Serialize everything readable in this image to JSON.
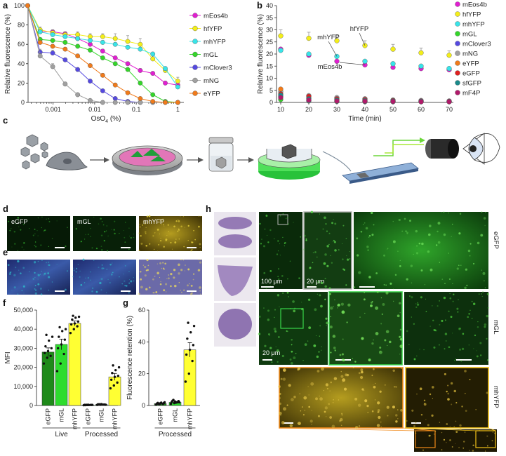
{
  "panel_letters": {
    "a": "a",
    "b": "b",
    "c": "c",
    "d": "d",
    "e": "e",
    "f": "f",
    "g": "g",
    "h": "h"
  },
  "chart_data": [
    {
      "id": "a",
      "type": "line",
      "xscale": "log",
      "xlabel_main": "OsO",
      "xlabel_sub": "4",
      "xlabel_tail": " (%)",
      "ylabel": "Relative fluorescence (%)",
      "xlim": [
        0.00025,
        1.4
      ],
      "ylim": [
        0,
        100
      ],
      "xticks": [
        0.001,
        0.01,
        0.1,
        1
      ],
      "xtick_labels": [
        "0.001",
        "0.01",
        "0.1",
        "1"
      ],
      "yticks": [
        0,
        20,
        40,
        60,
        80,
        100
      ],
      "legend_position": "right",
      "series": [
        {
          "name": "mEos4b",
          "color": "#e01fd0",
          "x": [
            0.0002441,
            0.000488,
            0.000977,
            0.00195,
            0.0039,
            0.0078,
            0.0156,
            0.03125,
            0.0625,
            0.125,
            0.25,
            0.5,
            1
          ],
          "y": [
            100,
            73,
            73,
            71,
            66,
            60,
            53,
            46,
            40,
            33,
            30,
            20,
            18
          ],
          "err": [
            0,
            2,
            2,
            2,
            2,
            2,
            2,
            2,
            2,
            2,
            2,
            2,
            2
          ]
        },
        {
          "name": "hfYFP",
          "color": "#f3ee1a",
          "x": [
            0.0002441,
            0.000488,
            0.000977,
            0.00195,
            0.0039,
            0.0078,
            0.0156,
            0.03125,
            0.0625,
            0.125,
            0.25,
            0.5,
            1
          ],
          "y": [
            100,
            75,
            72,
            70,
            70,
            68,
            68,
            66,
            63,
            60,
            45,
            33,
            22
          ],
          "err": [
            0,
            3,
            3,
            3,
            3,
            3,
            3,
            5,
            6,
            6,
            5,
            4,
            4
          ]
        },
        {
          "name": "mhYFP",
          "color": "#38e4e8",
          "x": [
            0.0002441,
            0.000488,
            0.000977,
            0.00195,
            0.0039,
            0.0078,
            0.0156,
            0.03125,
            0.0625,
            0.125,
            0.25,
            0.5,
            1
          ],
          "y": [
            100,
            73,
            70,
            68,
            66,
            64,
            62,
            60,
            57,
            55,
            50,
            35,
            16
          ],
          "err": [
            0,
            2,
            2,
            2,
            2,
            2,
            2,
            2,
            2,
            2,
            2,
            2,
            2
          ]
        },
        {
          "name": "mGL",
          "color": "#34d62a",
          "x": [
            0.0002441,
            0.000488,
            0.000977,
            0.00195,
            0.0039,
            0.0078,
            0.0156,
            0.03125,
            0.0625,
            0.125,
            0.25,
            0.5,
            1
          ],
          "y": [
            100,
            65,
            64,
            62,
            58,
            54,
            46,
            40,
            34,
            20,
            8,
            1,
            0
          ],
          "err": [
            0,
            2,
            2,
            2,
            2,
            2,
            2,
            2,
            2,
            2,
            1,
            1,
            0
          ]
        },
        {
          "name": "mClover3",
          "color": "#5549e0",
          "x": [
            0.0002441,
            0.000488,
            0.000977,
            0.00195,
            0.0039,
            0.0078,
            0.0156,
            0.03125,
            0.0625,
            0.125,
            0.25,
            0.5,
            1
          ],
          "y": [
            100,
            52,
            51,
            44,
            34,
            22,
            12,
            4,
            1,
            0,
            0,
            0,
            0
          ],
          "err": [
            0,
            3,
            3,
            2,
            2,
            2,
            1,
            1,
            0,
            0,
            0,
            0,
            0
          ]
        },
        {
          "name": "mNG",
          "color": "#a0a0a0",
          "x": [
            0.0002441,
            0.000488,
            0.000977,
            0.00195,
            0.0039,
            0.0078,
            0.0156,
            0.03125,
            0.0625,
            0.125,
            0.25,
            0.5,
            1
          ],
          "y": [
            100,
            48,
            37,
            19,
            8,
            2,
            0,
            0,
            0,
            0,
            0,
            0,
            0
          ],
          "err": [
            0,
            3,
            3,
            2,
            1,
            1,
            0,
            0,
            0,
            0,
            0,
            0,
            0
          ]
        },
        {
          "name": "eYFP",
          "color": "#f07a1a",
          "x": [
            0.0002441,
            0.000488,
            0.000977,
            0.00195,
            0.0039,
            0.0078,
            0.0156,
            0.03125,
            0.0625,
            0.125,
            0.25,
            0.5,
            1
          ],
          "y": [
            100,
            62,
            58,
            55,
            48,
            38,
            28,
            18,
            10,
            4,
            1,
            0,
            0
          ],
          "err": [
            0,
            2,
            2,
            2,
            2,
            2,
            2,
            2,
            1,
            1,
            0,
            0,
            0
          ]
        }
      ]
    },
    {
      "id": "b",
      "type": "scatter",
      "xlabel": "Time (min)",
      "ylabel": "Relative fluorescence (%)",
      "xlim": [
        10,
        70
      ],
      "ylim": [
        0,
        40
      ],
      "xticks": [
        10,
        20,
        30,
        40,
        50,
        60,
        70
      ],
      "yticks": [
        0,
        5,
        10,
        15,
        20,
        25,
        30,
        35,
        40
      ],
      "legend_position": "right",
      "annotations": [
        {
          "text": "mhYFP",
          "at_x": 30,
          "at_y": 19
        },
        {
          "text": "hfYFP",
          "at_x": 40,
          "at_y": 23.5
        },
        {
          "text": "mEos4b",
          "at_x": 40,
          "at_y": 15.5
        }
      ],
      "series": [
        {
          "name": "mEos4b",
          "color": "#e01fd0",
          "x": [
            10,
            20,
            30,
            40,
            50,
            60,
            70
          ],
          "y": [
            22,
            19.5,
            17,
            15.5,
            14.5,
            14,
            13.5
          ],
          "err": [
            0.8,
            0.8,
            0.8,
            0.8,
            0.8,
            0.8,
            0.8
          ]
        },
        {
          "name": "hfYFP",
          "color": "#f3ee1a",
          "x": [
            10,
            20,
            30,
            40,
            50,
            60,
            70
          ],
          "y": [
            27.5,
            26.5,
            25.5,
            23.5,
            22,
            20.5,
            19.5
          ],
          "err": [
            2.5,
            2.5,
            2.5,
            2,
            2,
            2,
            1.8
          ]
        },
        {
          "name": "mhYFP",
          "color": "#38e4e8",
          "x": [
            10,
            20,
            30,
            40,
            50,
            60,
            70
          ],
          "y": [
            21.5,
            20,
            19,
            17,
            16,
            15,
            14
          ],
          "err": [
            0.8,
            0.8,
            0.8,
            0.8,
            0.8,
            0.8,
            0.8
          ]
        },
        {
          "name": "mGL",
          "color": "#34d62a",
          "x": [
            10,
            20,
            30,
            40,
            50,
            60,
            70
          ],
          "y": [
            1.2,
            0.6,
            0.4,
            0.3,
            0.3,
            0.3,
            0.3
          ],
          "err": [
            0.2,
            0.1,
            0.1,
            0.1,
            0.1,
            0.1,
            0.1
          ]
        },
        {
          "name": "mClover3",
          "color": "#5549e0",
          "x": [
            10,
            20,
            30,
            40,
            50,
            60,
            70
          ],
          "y": [
            2.5,
            0.8,
            0.5,
            0.4,
            0.3,
            0.3,
            0.3
          ],
          "err": [
            0.2,
            0.1,
            0.1,
            0.1,
            0.1,
            0.1,
            0.1
          ]
        },
        {
          "name": "mNG",
          "color": "#a0a0a0",
          "x": [
            10,
            20,
            30,
            40,
            50,
            60,
            70
          ],
          "y": [
            4.5,
            2.8,
            2,
            1.5,
            1,
            0.8,
            0.6
          ],
          "err": [
            0.3,
            0.2,
            0.2,
            0.2,
            0.1,
            0.1,
            0.1
          ]
        },
        {
          "name": "eYFP",
          "color": "#f07a1a",
          "x": [
            10,
            20,
            30,
            40,
            50,
            60,
            70
          ],
          "y": [
            5.5,
            1.8,
            1,
            0.6,
            0.4,
            0.3,
            0.3
          ],
          "err": [
            0.3,
            0.2,
            0.1,
            0.1,
            0.1,
            0.1,
            0.1
          ]
        },
        {
          "name": "eGFP",
          "color": "#e02020",
          "x": [
            10,
            20,
            30,
            40,
            50,
            60,
            70
          ],
          "y": [
            3.5,
            2.5,
            1.5,
            1.2,
            0.8,
            0.6,
            0.5
          ],
          "err": [
            0.2,
            0.2,
            0.1,
            0.1,
            0.1,
            0.1,
            0.1
          ]
        },
        {
          "name": "sfGFP",
          "color": "#1a8a8a",
          "x": [
            10,
            20,
            30,
            40,
            50,
            60,
            70
          ],
          "y": [
            3,
            1.5,
            1,
            0.8,
            0.6,
            0.5,
            0.4
          ],
          "err": [
            0.2,
            0.1,
            0.1,
            0.1,
            0.1,
            0.1,
            0.1
          ]
        },
        {
          "name": "mF4P",
          "color": "#b01a6a",
          "x": [
            10,
            20,
            30,
            40,
            50,
            60,
            70
          ],
          "y": [
            2,
            1,
            0.6,
            0.5,
            0.4,
            0.3,
            0.3
          ],
          "err": [
            0.2,
            0.1,
            0.1,
            0.1,
            0.1,
            0.1,
            0.1
          ]
        }
      ]
    },
    {
      "id": "f",
      "type": "bar",
      "ylabel": "MFI",
      "ylim": [
        0,
        50000
      ],
      "yticks": [
        0,
        10000,
        20000,
        30000,
        40000,
        50000
      ],
      "ytick_labels": [
        "0",
        "10,000",
        "20,000",
        "30,000",
        "40,000",
        "50,000"
      ],
      "categories": [
        "eGFP",
        "mGL",
        "mhYFP",
        "eGFP",
        "mGL",
        "mhYFP"
      ],
      "colors": [
        "#1f8a1a",
        "#2edc2e",
        "#ffff33",
        "#1f8a1a",
        "#2edc2e",
        "#ffff33"
      ],
      "values": [
        28000,
        32000,
        43000,
        300,
        500,
        15000
      ],
      "errors": [
        2200,
        2800,
        1300,
        100,
        150,
        1800
      ],
      "points": [
        [
          22000,
          25000,
          26000,
          27500,
          28500,
          30000,
          31000,
          34000,
          36000,
          37000
        ],
        [
          18000,
          22000,
          27000,
          30000,
          32000,
          34500,
          36000,
          39000,
          40000,
          41000
        ],
        [
          38000,
          40000,
          41500,
          42500,
          43000,
          44000,
          45000,
          46000,
          46500,
          47000
        ],
        [
          150,
          250,
          300,
          350,
          400,
          300,
          200,
          250,
          300,
          350
        ],
        [
          300,
          400,
          500,
          600,
          700,
          450,
          550,
          500,
          400,
          600
        ],
        [
          9000,
          10500,
          12000,
          13500,
          15000,
          15500,
          17000,
          18500,
          20000,
          21000
        ]
      ],
      "groups": [
        {
          "label": "Live"
        },
        {
          "label": "Processed"
        }
      ]
    },
    {
      "id": "g",
      "type": "bar",
      "ylabel": "Fluorescence retention (%)",
      "ylim": [
        0,
        60
      ],
      "yticks": [
        0,
        20,
        40,
        60
      ],
      "categories": [
        "eGFP",
        "mGL",
        "mhYFP"
      ],
      "colors": [
        "#1f8a1a",
        "#2edc2e",
        "#ffff33"
      ],
      "values": [
        1.2,
        2,
        35
      ],
      "errors": [
        0.4,
        0.6,
        4.5
      ],
      "points": [
        [
          0.5,
          0.8,
          1,
          1.2,
          1.4,
          1.5,
          1.6,
          1.8,
          2,
          1
        ],
        [
          1,
          1.5,
          2,
          2.2,
          2.5,
          2.8,
          3,
          1.8,
          2,
          3.5
        ],
        [
          15,
          20,
          28,
          32,
          35,
          38,
          42,
          46,
          50,
          52
        ]
      ],
      "group_label": "Processed"
    }
  ],
  "micrographs": {
    "d_labels": [
      "eGFP",
      "mGL",
      "mhYFP"
    ],
    "h_scale_labels": [
      "100 μm",
      "20 μm",
      "20 μm"
    ],
    "h_row_labels": [
      "eGFP",
      "mGL",
      "mhYFP"
    ]
  }
}
